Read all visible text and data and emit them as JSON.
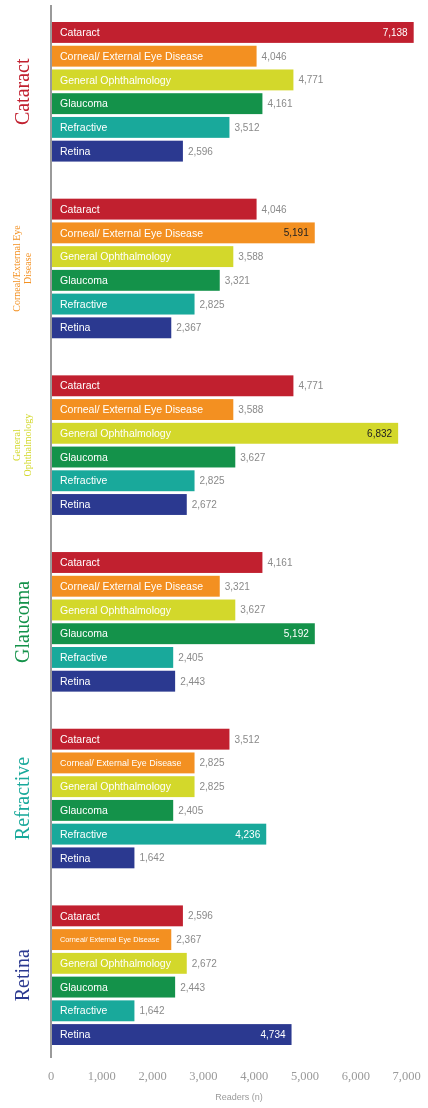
{
  "chart_data": {
    "type": "bar",
    "orientation": "horizontal",
    "xlabel": "Readers (n)",
    "categories": [
      "Cataract",
      "Corneal/External Eye Disease",
      "General Ophthalmology",
      "Glaucoma",
      "Refractive",
      "Retina"
    ],
    "series": [
      {
        "name": "Cataract",
        "color": "#c1202f",
        "values": [
          7138,
          4046,
          4771,
          4161,
          3512,
          2596
        ],
        "value_labels": [
          "7,138",
          "4,046",
          "4,771",
          "4,161",
          "3,512",
          "2,596"
        ]
      },
      {
        "name": "Corneal/ External Eye Disease",
        "color": "#f39021",
        "values": [
          4046,
          5191,
          3588,
          3321,
          2825,
          2367
        ],
        "value_labels": [
          "4,046",
          "5,191",
          "3,588",
          "3,321",
          "2,825",
          "2,367"
        ]
      },
      {
        "name": "General Ophthalmology",
        "color": "#d3d82b",
        "values": [
          4771,
          3588,
          6832,
          3627,
          2825,
          2672
        ],
        "value_labels": [
          "4,771",
          "3,588",
          "6,832",
          "3,627",
          "2,825",
          "2,672"
        ]
      },
      {
        "name": "Glaucoma",
        "color": "#14924a",
        "values": [
          4161,
          3321,
          3627,
          5192,
          2405,
          2443
        ],
        "value_labels": [
          "4,161",
          "3,321",
          "3,627",
          "5,192",
          "2,405",
          "2,443"
        ]
      },
      {
        "name": "Refractive",
        "color": "#19a99b",
        "values": [
          3512,
          2825,
          2825,
          2405,
          4236,
          1642
        ],
        "value_labels": [
          "3,512",
          "2,825",
          "2,825",
          "2,405",
          "4,236",
          "1,642"
        ]
      },
      {
        "name": "Retina",
        "color": "#2b3990",
        "values": [
          2596,
          2367,
          2672,
          2443,
          1642,
          4734
        ],
        "value_labels": [
          "2,596",
          "2,367",
          "2,672",
          "2,443",
          "1,642",
          "4,734"
        ]
      }
    ],
    "xlim": [
      0,
      7400
    ],
    "xticks": [
      0,
      {
        "value": 1000,
        "label": "1,000"
      },
      {
        "value": 2000,
        "label": "2,000"
      },
      {
        "value": 3000,
        "label": "3,000"
      },
      {
        "value": 4000,
        "label": "4,000"
      },
      {
        "value": 5000,
        "label": "5,000"
      },
      {
        "value": 6000,
        "label": "6,000"
      },
      {
        "value": 7000,
        "label": "7,000"
      }
    ],
    "grid": false
  }
}
